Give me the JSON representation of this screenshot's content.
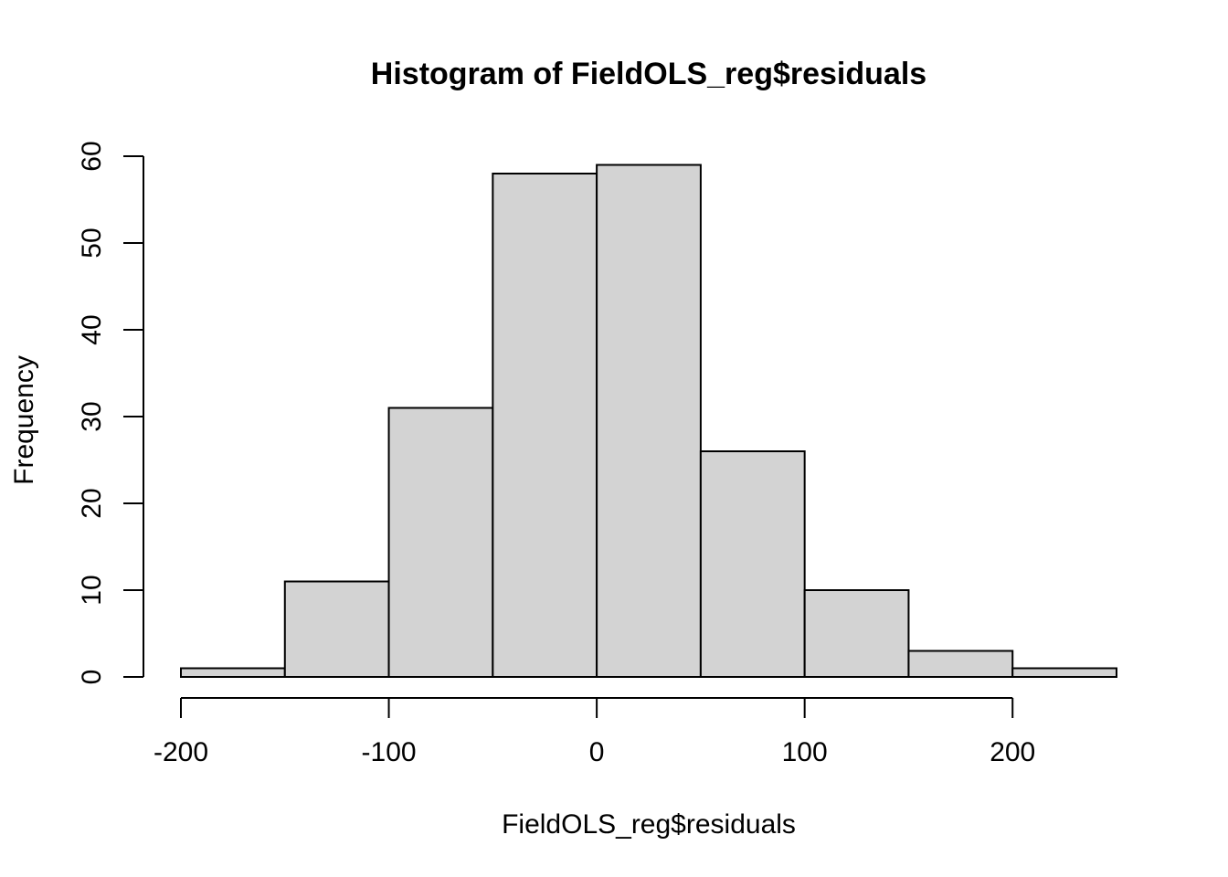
{
  "chart_data": {
    "type": "bar",
    "title": "Histogram of FieldOLS_reg$residuals",
    "xlabel": "FieldOLS_reg$residuals",
    "ylabel": "Frequency",
    "bins": [
      {
        "from": -200,
        "to": -150,
        "count": 1
      },
      {
        "from": -150,
        "to": -100,
        "count": 11
      },
      {
        "from": -100,
        "to": -50,
        "count": 31
      },
      {
        "from": -50,
        "to": 0,
        "count": 58
      },
      {
        "from": 0,
        "to": 50,
        "count": 59
      },
      {
        "from": 50,
        "to": 100,
        "count": 26
      },
      {
        "from": 100,
        "to": 150,
        "count": 10
      },
      {
        "from": 150,
        "to": 200,
        "count": 3
      },
      {
        "from": 200,
        "to": 250,
        "count": 1
      }
    ],
    "xticks": [
      -200,
      -100,
      0,
      100,
      200
    ],
    "yticks": [
      0,
      10,
      20,
      30,
      40,
      50,
      60
    ],
    "xlim": [
      -200,
      250
    ],
    "ylim": [
      0,
      60
    ],
    "bar_color": "#d3d3d3",
    "edge_color": "#000000",
    "grid": false
  }
}
